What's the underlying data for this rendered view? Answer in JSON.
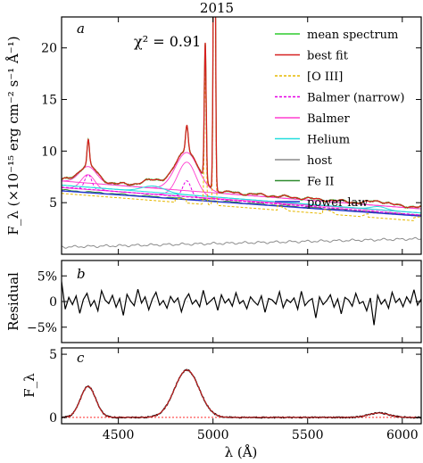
{
  "figure_title": "2015",
  "colors": {
    "mean": "#2ecc2e",
    "bestfit": "#d62020",
    "oiii": "#e6b800",
    "balmer_narrow": "#e600e6",
    "balmer": "#ff3fd0",
    "helium": "#22dddd",
    "host": "#8c8c8c",
    "feii": "#2e8b2e",
    "powerlaw": "#2233cc",
    "residual": "#000000",
    "panel_c_data": "#000000",
    "panel_c_narrow": "#ff2a2a"
  },
  "chart_data": [
    {
      "type": "line",
      "panel_label": "a",
      "annotation": "χ² = 0.91",
      "ylabel": "F_λ (×10⁻¹⁵ erg cm⁻² s⁻¹ Å⁻¹)",
      "xlim": [
        4200,
        6100
      ],
      "ylim": [
        0,
        23
      ],
      "xticks": [
        4500,
        5000,
        5500,
        6000
      ],
      "yticks": [
        5,
        10,
        15,
        20
      ],
      "legend_position": "top-right",
      "legend": [
        {
          "name": "mean spectrum",
          "style": "solid",
          "color_key": "mean"
        },
        {
          "name": "best fit",
          "style": "solid",
          "color_key": "bestfit"
        },
        {
          "name": "[O III]",
          "style": "dashed",
          "color_key": "oiii"
        },
        {
          "name": "Balmer (narrow)",
          "style": "dashed",
          "color_key": "balmer_narrow"
        },
        {
          "name": "Balmer",
          "style": "solid",
          "color_key": "balmer"
        },
        {
          "name": "Helium",
          "style": "solid",
          "color_key": "helium"
        },
        {
          "name": "host",
          "style": "solid",
          "color_key": "host"
        },
        {
          "name": "Fe II",
          "style": "solid",
          "color_key": "feii"
        },
        {
          "name": "power law",
          "style": "solid",
          "color_key": "powerlaw"
        }
      ],
      "components": {
        "continuum_at_4200": 7.1,
        "continuum_at_6100": 4.4,
        "power_law_at_4200": 6.15,
        "power_law_at_6100": 3.7,
        "host_at_4200": 0.7,
        "host_at_6100": 1.5,
        "feii_mean_level": 0.25,
        "broad_lines": [
          {
            "name": "Hγ",
            "center": 4340,
            "amplitude": 1.6,
            "sigma": 45
          },
          {
            "name": "Hβ",
            "center": 4862,
            "amplitude": 3.7,
            "sigma": 60
          }
        ],
        "narrow_lines": [
          {
            "name": "Hγ narrow",
            "center": 4341,
            "amplitude": 2.4,
            "sigma": 6
          },
          {
            "name": "Hβ narrow",
            "center": 4862,
            "amplitude": 2.6,
            "sigma": 7
          },
          {
            "name": "[O III] 4959",
            "center": 4959,
            "amplitude": 13.2,
            "sigma": 5
          },
          {
            "name": "[O III] 5007",
            "center": 5007,
            "amplitude": 40,
            "sigma": 5
          }
        ],
        "helium_lines": [
          {
            "name": "He II",
            "center": 4686,
            "amplitude": 0.6,
            "sigma": 60
          },
          {
            "name": "He I",
            "center": 5876,
            "amplitude": 0.3,
            "sigma": 40
          }
        ]
      }
    },
    {
      "type": "line",
      "panel_label": "b",
      "ylabel": "Residual",
      "xlim": [
        4200,
        6100
      ],
      "ylim": [
        -8,
        8
      ],
      "xticks": [
        4500,
        5000,
        5500,
        6000
      ],
      "yticks": [
        5,
        0,
        -5
      ],
      "ytick_labels": [
        "5%",
        "0",
        "−5%"
      ],
      "series": [
        {
          "values_pct": [
            3.9,
            -1.5,
            0.8,
            -0.6,
            1.1,
            -2.3,
            0.4,
            1.6,
            -0.9,
            0.2,
            -1.8,
            2.1,
            0.3,
            -0.4,
            1.2,
            -1.1,
            0.6,
            -2.7,
            1.4,
            0.1,
            -0.8,
            2.4,
            -0.3,
            0.9,
            -1.6,
            0.5,
            1.8,
            -0.7,
            0.2,
            -1.3,
            1.0,
            -0.2,
            0.7,
            -2.0,
            0.4,
            1.5,
            -0.5,
            0.3,
            -1.0,
            2.2,
            -0.6,
            0.1,
            0.8,
            -1.7,
            1.3,
            -0.3,
            0.5,
            -0.9,
            1.7,
            -0.4,
            0.2,
            -1.4,
            0.9,
            0.0,
            -0.7,
            1.1,
            -2.1,
            0.6,
            0.3,
            -0.5,
            1.9,
            -1.2,
            0.4,
            -0.2,
            0.7,
            -1.5,
            2.0,
            -0.8,
            0.1,
            0.6,
            -3.2,
            0.9,
            -0.6,
            0.2,
            1.3,
            -1.1,
            0.5,
            -2.4,
            0.8,
            0.3,
            -0.9,
            1.6,
            -0.4,
            0.0,
            -1.8,
            0.7,
            -4.6,
            1.2,
            -0.5,
            0.4,
            -1.3,
            1.8,
            -0.2,
            0.6,
            -1.0,
            0.9,
            -0.3,
            2.3,
            -0.7,
            0.5
          ]
        }
      ]
    },
    {
      "type": "line",
      "panel_label": "c",
      "ylabel": "F_λ",
      "xlabel": "λ (Å)",
      "xlim": [
        4200,
        6100
      ],
      "ylim": [
        -0.5,
        5.5
      ],
      "xticks": [
        4500,
        5000,
        5500,
        6000
      ],
      "yticks": [
        0,
        5
      ],
      "components": {
        "broad_lines": [
          {
            "center": 4340,
            "amplitude": 2.45,
            "sigma": 40
          },
          {
            "center": 4862,
            "amplitude": 3.75,
            "sigma": 65
          },
          {
            "center": 5876,
            "amplitude": 0.35,
            "sigma": 55
          }
        ]
      }
    }
  ]
}
